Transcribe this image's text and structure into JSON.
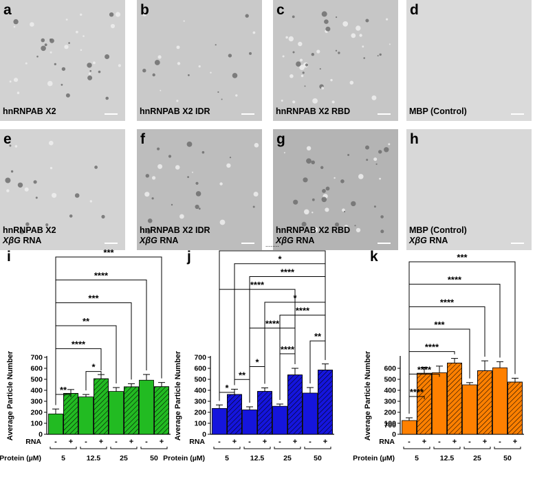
{
  "figure": {
    "micrographs": [
      {
        "letter": "a",
        "caption": "hnRNPAB X2",
        "caption_rna": "",
        "bg": "#d2d2d2"
      },
      {
        "letter": "b",
        "caption": "hnRNPAB X2 IDR",
        "caption_rna": "",
        "bg": "#c9c9c9"
      },
      {
        "letter": "c",
        "caption": "hnRNPAB X2 RBD",
        "caption_rna": "",
        "bg": "#c6c6c6"
      },
      {
        "letter": "d",
        "caption": "MBP (Control)",
        "caption_rna": "",
        "bg": "#dadada"
      },
      {
        "letter": "e",
        "caption": "hnRNPAB X2",
        "caption_rna": "XβG",
        "bg": "#d3d3d3"
      },
      {
        "letter": "f",
        "caption": "hnRNPAB X2 IDR",
        "caption_rna": "XβG",
        "bg": "#bdbdbd"
      },
      {
        "letter": "g",
        "caption": "hnRNPAB X2 RBD",
        "caption_rna": "XβG",
        "bg": "#b4b4b4"
      },
      {
        "letter": "h",
        "caption": "MBP (Control)",
        "caption_rna": "XβG",
        "bg": "#d8d8d8"
      }
    ],
    "rna_suffix": "RNA"
  },
  "chart_data": [
    {
      "panel": "i",
      "type": "bar",
      "color": "#22bb22",
      "ylabel": "Average Particle Number",
      "ylim": [
        0,
        700
      ],
      "yticks": [
        0,
        100,
        200,
        300,
        400,
        500,
        600,
        700
      ],
      "rna_label": "RNA",
      "protein_label": "Protein (µM)",
      "rna_signs": [
        "-",
        "+",
        "-",
        "+",
        "-",
        "+",
        "-",
        "+"
      ],
      "groups": [
        "5",
        "12.5",
        "25",
        "50"
      ],
      "values": [
        185,
        372,
        340,
        505,
        390,
        432,
        492,
        433
      ],
      "errors": [
        45,
        35,
        22,
        38,
        35,
        28,
        52,
        38
      ],
      "significance": [
        {
          "from": 0,
          "to": 1,
          "stars": "**"
        },
        {
          "from": 2,
          "to": 3,
          "stars": "*"
        },
        {
          "from": 0,
          "to": 3,
          "stars": "****"
        },
        {
          "from": 0,
          "to": 4,
          "stars": "**"
        },
        {
          "from": 0,
          "to": 5,
          "stars": "***"
        },
        {
          "from": 0,
          "to": 6,
          "stars": "****"
        },
        {
          "from": 0,
          "to": 7,
          "stars": "***"
        }
      ]
    },
    {
      "panel": "j",
      "type": "bar",
      "color": "#1515dd",
      "ylabel": "Average Particle Number",
      "ylim": [
        0,
        700
      ],
      "yticks": [
        0,
        100,
        200,
        300,
        400,
        500,
        600,
        700
      ],
      "rna_label": "RNA",
      "protein_label": "Protein (µM)",
      "rna_signs": [
        "-",
        "+",
        "-",
        "+",
        "-",
        "+",
        "-",
        "+"
      ],
      "groups": [
        "5",
        "12.5",
        "25",
        "50"
      ],
      "values": [
        235,
        362,
        222,
        390,
        255,
        540,
        375,
        585
      ],
      "errors": [
        32,
        48,
        28,
        32,
        20,
        60,
        50,
        55
      ],
      "significance": [
        {
          "from": 0,
          "to": 1,
          "stars": "*"
        },
        {
          "from": 1,
          "to": 2,
          "stars": "**"
        },
        {
          "from": 2,
          "to": 3,
          "stars": "*"
        },
        {
          "from": 4,
          "to": 5,
          "stars": "****"
        },
        {
          "from": 6,
          "to": 7,
          "stars": "**"
        },
        {
          "from": 2,
          "to": 5,
          "stars": "****"
        },
        {
          "from": 4,
          "to": 7,
          "stars": "****"
        },
        {
          "from": 3,
          "to": 7,
          "stars": "*"
        },
        {
          "from": 0,
          "to": 5,
          "stars": "****"
        },
        {
          "from": 2,
          "to": 7,
          "stars": "****"
        },
        {
          "from": 1,
          "to": 7,
          "stars": "*"
        },
        {
          "from": 0,
          "to": 7,
          "stars": "****"
        }
      ]
    },
    {
      "panel": "k",
      "type": "bar",
      "color": "#ff8000",
      "ylabel": "Average Particle Number",
      "ylim": [
        0,
        700
      ],
      "yticks": [
        0,
        100,
        200,
        300,
        400,
        500,
        600
      ],
      "ytick_labels": [
        "0",
        "100",
        "200",
        "300",
        "400",
        "500",
        "600"
      ],
      "extra_tick_label": "700",
      "rna_label": "RNA",
      "protein_label": "Protein (µM)",
      "rna_signs": [
        "-",
        "+",
        "-",
        "+",
        "-",
        "+",
        "-",
        "+"
      ],
      "groups": [
        "5",
        "12.5",
        "25",
        "50"
      ],
      "values": [
        125,
        555,
        560,
        648,
        450,
        578,
        605,
        475
      ],
      "errors": [
        25,
        55,
        60,
        42,
        20,
        90,
        55,
        35
      ],
      "significance": [
        {
          "from": 0,
          "to": 1,
          "stars": "****"
        },
        {
          "from": 0,
          "to": 2,
          "stars": "****"
        },
        {
          "from": 0,
          "to": 3,
          "stars": "****"
        },
        {
          "from": 0,
          "to": 4,
          "stars": "***"
        },
        {
          "from": 0,
          "to": 5,
          "stars": "****"
        },
        {
          "from": 0,
          "to": 6,
          "stars": "****"
        },
        {
          "from": 0,
          "to": 7,
          "stars": "***"
        }
      ]
    }
  ]
}
